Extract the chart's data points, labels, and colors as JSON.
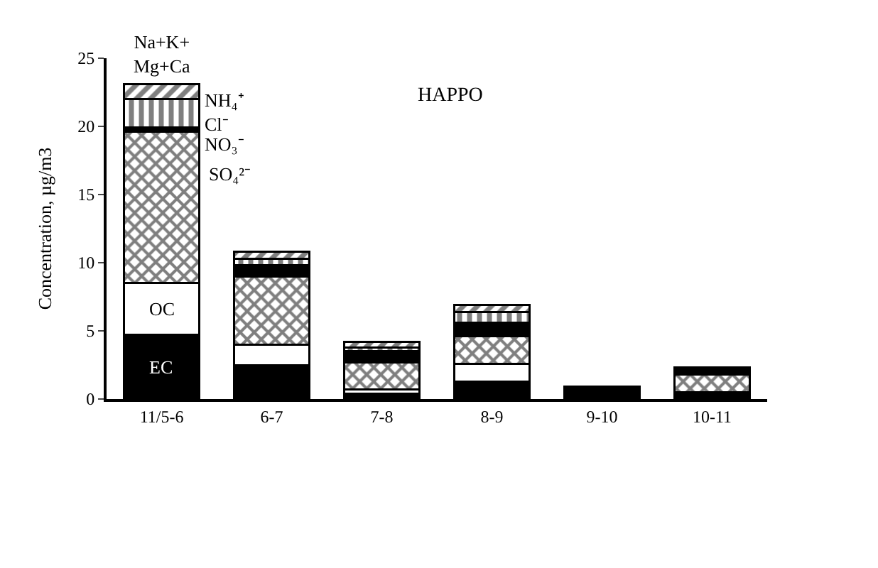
{
  "chart_data": {
    "type": "bar",
    "stacked": true,
    "legend": false,
    "annotations": [
      "HAPPO"
    ],
    "ylabel": "Concentration, µg/m3",
    "categories": [
      "11/5-6",
      "6-7",
      "7-8",
      "8-9",
      "9-10",
      "10-11"
    ],
    "ylim": [
      0,
      25
    ],
    "yticks": [
      0,
      5,
      10,
      15,
      20,
      25
    ],
    "series": [
      {
        "name": "EC",
        "color": "#000000",
        "values": [
          4.7,
          2.5,
          0.4,
          1.3,
          0.9,
          0.5
        ]
      },
      {
        "name": "OC",
        "color": "#ffffff",
        "values": [
          3.8,
          1.5,
          0.3,
          1.3,
          0,
          0
        ]
      },
      {
        "name": "SO₄²⁻",
        "color": "#000000",
        "values": [
          11.1,
          5.0,
          2.0,
          2.0,
          0,
          1.3
        ]
      },
      {
        "name": "NO₃⁻",
        "color": "#000000",
        "values": [
          0.1,
          0.6,
          0.5,
          0.7,
          0,
          0.2
        ]
      },
      {
        "name": "Cl⁻",
        "color": "#000000",
        "values": [
          0.2,
          0.2,
          0.3,
          0.3,
          0,
          0.1
        ]
      },
      {
        "name": "NH₄⁺",
        "color": "#000000",
        "values": [
          2.1,
          0.5,
          0.3,
          0.8,
          0,
          0.1
        ]
      },
      {
        "name": "Na+K+Mg+Ca",
        "color": "#000000",
        "values": [
          1.1,
          0.5,
          0.4,
          0.5,
          0,
          0.1
        ]
      }
    ]
  }
}
